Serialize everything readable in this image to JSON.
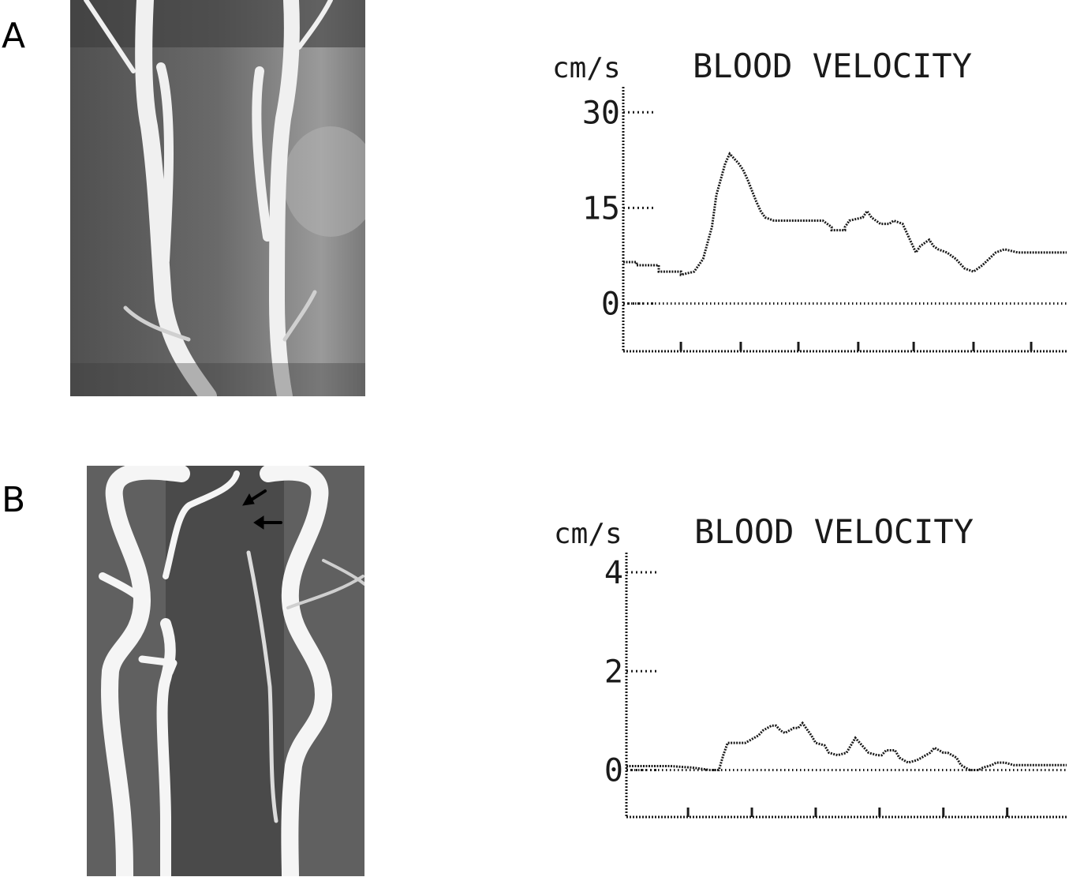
{
  "panels": [
    {
      "label": "A",
      "image": {
        "type": "MR angiogram",
        "arrows": 0
      },
      "chart_data": {
        "type": "line",
        "title": "BLOOD VELOCITY",
        "ylabel": "cm/s",
        "yticks": [
          0,
          15,
          30
        ],
        "tick_labels": [
          "0",
          "15",
          "30"
        ],
        "ylim": [
          -7.5,
          34
        ],
        "xlim": [
          0,
          100
        ],
        "x_ticks": [
          13,
          26.5,
          39.5,
          53,
          65.5,
          79,
          92
        ],
        "reference_line": 0,
        "series": [
          {
            "x": [
              0,
              3,
              3,
              8,
              8,
              13,
              13,
              16,
              18,
              20,
              21,
              23,
              24,
              26,
              27,
              28,
              30,
              31,
              32,
              34,
              36,
              38,
              40,
              42,
              45,
              47,
              47,
              48,
              50,
              50,
              51,
              54,
              55,
              56,
              58,
              60,
              61,
              63,
              64,
              66,
              67,
              69,
              70,
              71,
              73,
              75,
              77,
              79,
              81,
              84,
              86,
              89,
              90,
              92,
              94,
              97,
              100
            ],
            "y": [
              6.5,
              6.5,
              6,
              6,
              5,
              5,
              4.5,
              5,
              7,
              12,
              17,
              22,
              23.5,
              22,
              21,
              19.5,
              16,
              14.5,
              13.5,
              13,
              13,
              13,
              13,
              13,
              13,
              12,
              11.5,
              11.5,
              11.5,
              12,
              13,
              13.5,
              14.5,
              13.5,
              12.5,
              12.5,
              13,
              12.5,
              11,
              8,
              9,
              10,
              9,
              8.5,
              8,
              7,
              5.5,
              5,
              6,
              8,
              8.5,
              8,
              8,
              8,
              8,
              8,
              8
            ]
          }
        ]
      }
    },
    {
      "label": "B",
      "image": {
        "type": "MR angiogram",
        "arrows": 2
      },
      "chart_data": {
        "type": "line",
        "title": "BLOOD VELOCITY",
        "ylabel": "cm/s",
        "yticks": [
          0,
          2,
          4
        ],
        "tick_labels": [
          "0",
          "2",
          "4"
        ],
        "ylim": [
          -0.95,
          4.4
        ],
        "xlim": [
          0,
          100
        ],
        "x_ticks": [
          14,
          28.5,
          43,
          57.5,
          72,
          86.5
        ],
        "reference_line": 0,
        "series": [
          {
            "x": [
              0,
              5,
              10,
              15,
              19,
              21,
              22,
              23,
              25,
              27,
              30,
              31,
              33,
              34,
              35,
              36,
              38,
              39,
              40,
              42,
              43,
              45,
              46,
              48,
              50,
              52,
              54,
              55,
              57,
              58,
              59,
              61,
              62,
              64,
              66,
              67,
              69,
              70,
              72,
              73,
              75,
              76,
              78,
              80,
              81,
              83,
              84,
              86,
              88,
              90,
              92,
              95,
              100
            ],
            "y": [
              0.08,
              0.08,
              0.08,
              0.05,
              0,
              0,
              0.3,
              0.55,
              0.55,
              0.55,
              0.7,
              0.8,
              0.9,
              0.9,
              0.8,
              0.75,
              0.85,
              0.85,
              0.95,
              0.7,
              0.55,
              0.5,
              0.35,
              0.3,
              0.35,
              0.65,
              0.45,
              0.35,
              0.3,
              0.3,
              0.4,
              0.4,
              0.25,
              0.15,
              0.2,
              0.25,
              0.35,
              0.45,
              0.35,
              0.35,
              0.25,
              0.1,
              0,
              0,
              0.05,
              0.1,
              0.15,
              0.15,
              0.1,
              0.1,
              0.1,
              0.1,
              0.1
            ]
          }
        ]
      }
    }
  ],
  "colors": {
    "trace": "#1a1a1a",
    "mri_bg": "#6e6e6e",
    "vessel": "#f2f2f2"
  }
}
